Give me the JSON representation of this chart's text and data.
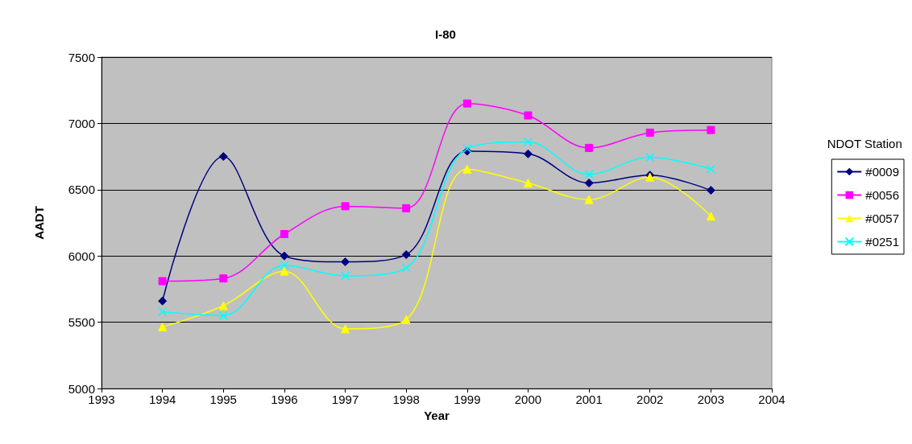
{
  "chart_data": {
    "type": "line",
    "title": "I-80",
    "xlabel": "Year",
    "ylabel": "AADT",
    "legend_title": "NDOT Station",
    "legend": "right",
    "x": [
      1994,
      1995,
      1996,
      1997,
      1998,
      1999,
      2000,
      2001,
      2002,
      2003
    ],
    "xlim": [
      1993,
      2004
    ],
    "xticks": [
      1993,
      1994,
      1995,
      1996,
      1997,
      1998,
      1999,
      2000,
      2001,
      2002,
      2003,
      2004
    ],
    "ylim": [
      5000,
      7500
    ],
    "yticks": [
      5000,
      5500,
      6000,
      6500,
      7000,
      7500
    ],
    "grid": "y",
    "series": [
      {
        "name": "#0009",
        "color": "#000080",
        "marker": "diamond",
        "values": [
          5660,
          6750,
          6000,
          5955,
          6010,
          6790,
          6770,
          6550,
          6610,
          6495
        ]
      },
      {
        "name": "#0056",
        "color": "#ff00ff",
        "marker": "square",
        "values": [
          5810,
          5830,
          6165,
          6375,
          6360,
          7150,
          7060,
          6815,
          6930,
          6950
        ]
      },
      {
        "name": "#0057",
        "color": "#ffff00",
        "marker": "triangle",
        "values": [
          5465,
          5625,
          5885,
          5450,
          5520,
          6655,
          6550,
          6425,
          6595,
          6300
        ]
      },
      {
        "name": "#0251",
        "color": "#00ffff",
        "marker": "cross",
        "values": [
          5580,
          5550,
          5930,
          5850,
          5910,
          6810,
          6860,
          6615,
          6745,
          6655
        ]
      }
    ]
  }
}
